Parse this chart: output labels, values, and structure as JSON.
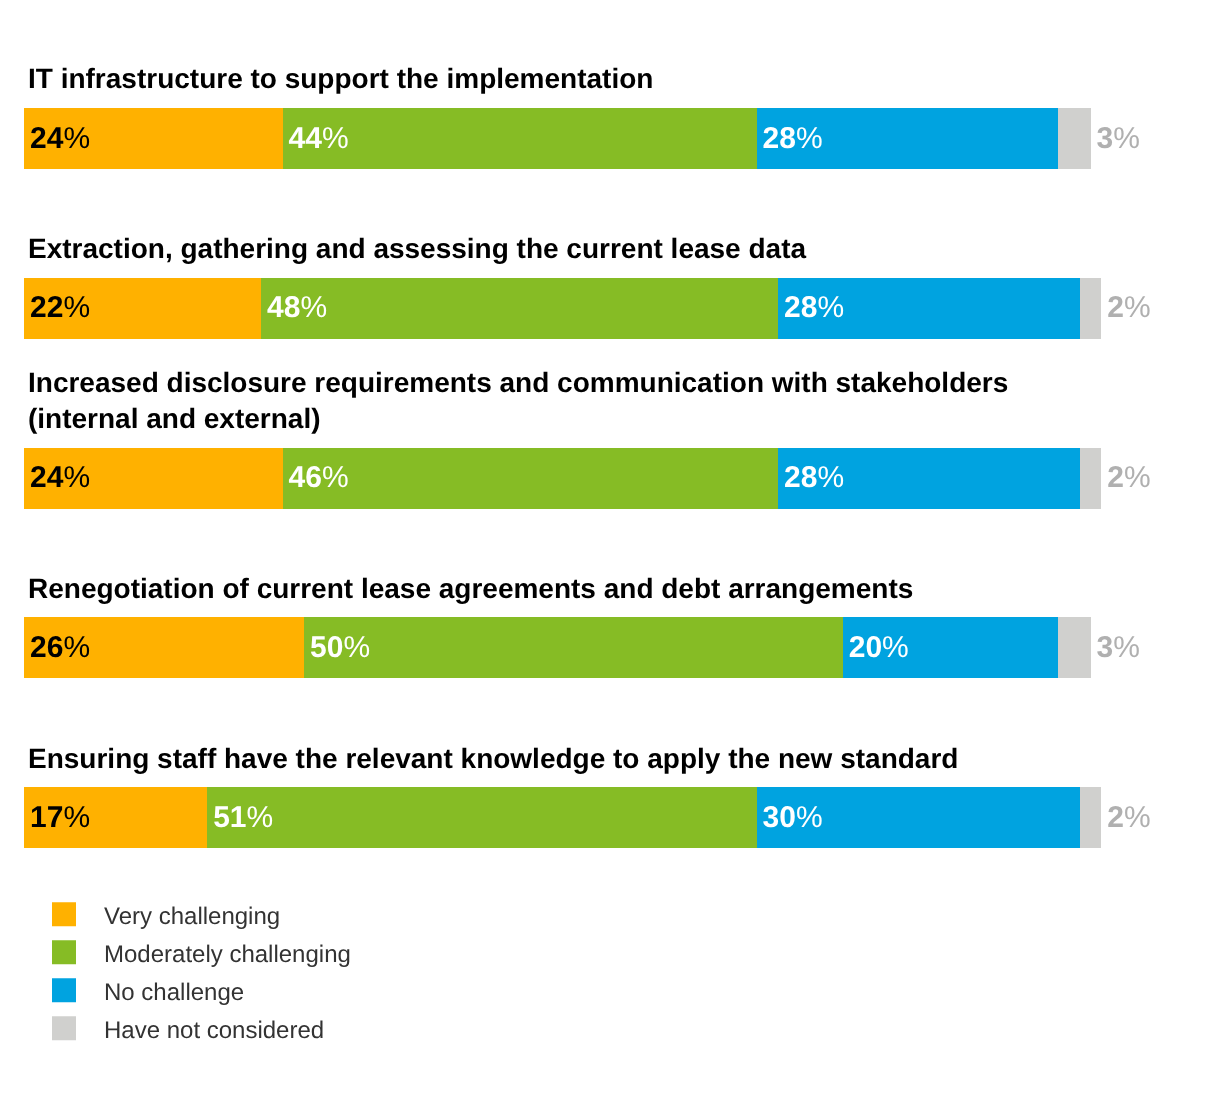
{
  "chart_data": {
    "type": "bar",
    "orientation": "horizontal",
    "stacked": true,
    "categories": [
      "IT infrastructure to support the implementation",
      "Extraction, gathering and assessing the current lease data",
      "Increased disclosure requirements and communication with stakeholders (internal and external)",
      "Renegotiation of current lease agreements and debt arrangements",
      "Ensuring staff have the relevant knowledge to apply the new standard"
    ],
    "series": [
      {
        "name": "Very challenging",
        "color": "#ffb100",
        "values": [
          24,
          22,
          24,
          26,
          17
        ],
        "value_labels": [
          "24%",
          "22%",
          "24%",
          "26%",
          "17%"
        ]
      },
      {
        "name": "Moderately challenging",
        "color": "#86bc25",
        "values": [
          44,
          48,
          46,
          50,
          51
        ],
        "value_labels": [
          "44%",
          "48%",
          "46%",
          "50%",
          "51%"
        ]
      },
      {
        "name": "No challenge",
        "color": "#00a3e0",
        "values": [
          28,
          28,
          28,
          20,
          30
        ],
        "value_labels": [
          "28%",
          "28%",
          "28%",
          "20%",
          "30%"
        ]
      },
      {
        "name": "Have not considered",
        "color": "#d0d0ce",
        "values": [
          3,
          2,
          2,
          3,
          2
        ],
        "value_labels": [
          "3%",
          "2%",
          "2%",
          "3%",
          "2%"
        ]
      }
    ],
    "tick_labels": false,
    "legend": "bottom left"
  }
}
